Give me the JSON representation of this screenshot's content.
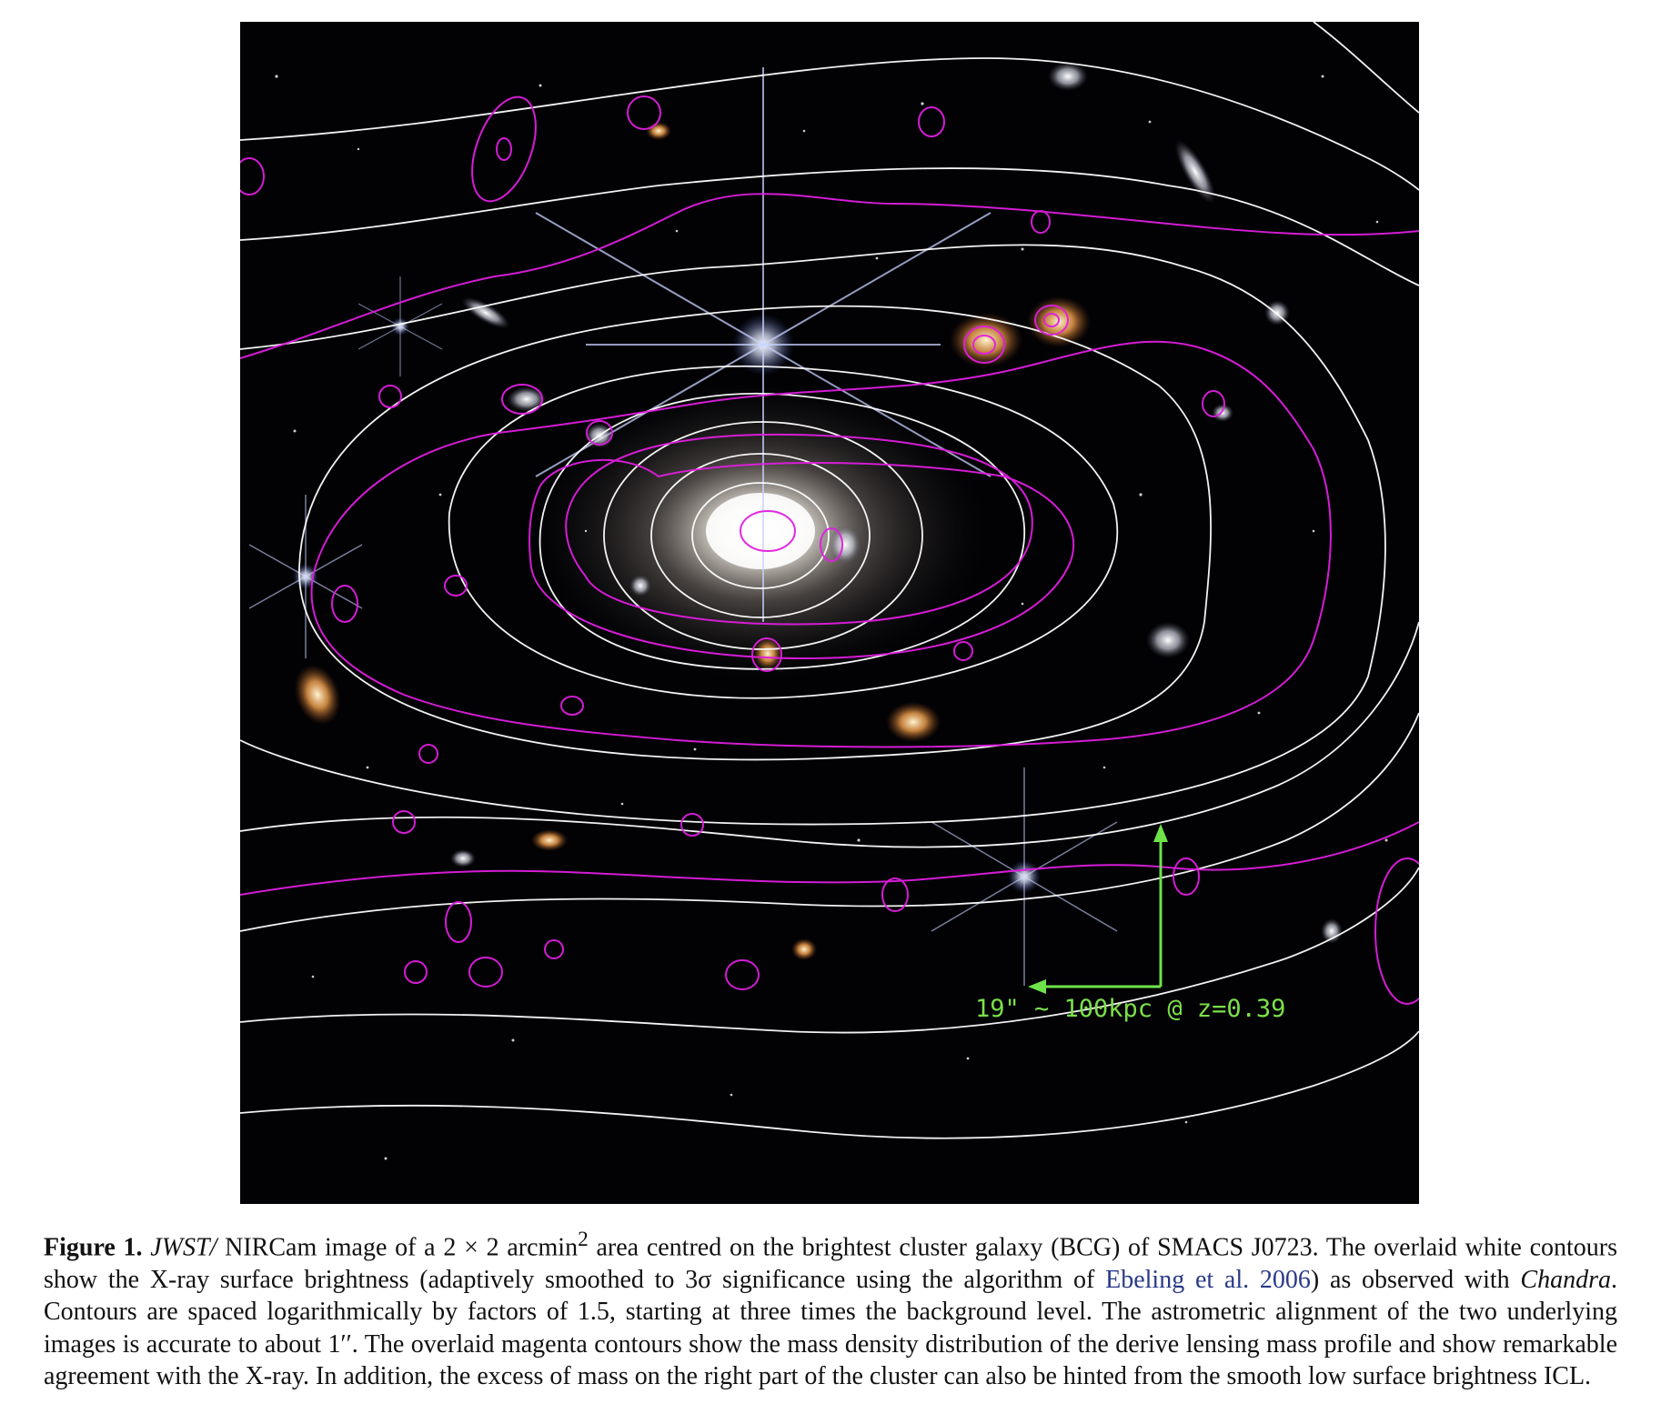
{
  "figure": {
    "scale_bar_text": "19\" ~ 100kpc @ z=0.39",
    "colors": {
      "background": "#000000",
      "xray_contours": "#ffffff",
      "mass_contours": "#e01ee0",
      "compass": "#6fe24a"
    },
    "icons": [
      "compass-arrows-icon"
    ]
  },
  "caption": {
    "label": "Figure 1.",
    "body_italic_1": "JWST/",
    "body_1": " NIRCam image of a 2 × 2 arcmin",
    "superscript": "2",
    "body_2": " area centred on the brightest cluster galaxy (BCG) of SMACS J0723.  The overlaid white contours show the X-ray surface brightness (adaptively smoothed to 3σ significance using the algorithm of ",
    "citation": "Ebeling et al. 2006",
    "body_3": ") as observed with ",
    "body_italic_2": "Chandra",
    "body_4": ".  Contours are spaced logarithmically by factors of 1.5, starting at three times the background level.  The astrometric alignment of the two underlying images is accurate to about 1′′.  The overlaid magenta contours show the mass density distribution of the derive lensing mass profile and show remarkable agreement with the X-ray.  In addition, the excess of mass on the right part of the cluster can also be hinted from the smooth low surface brightness ICL."
  }
}
